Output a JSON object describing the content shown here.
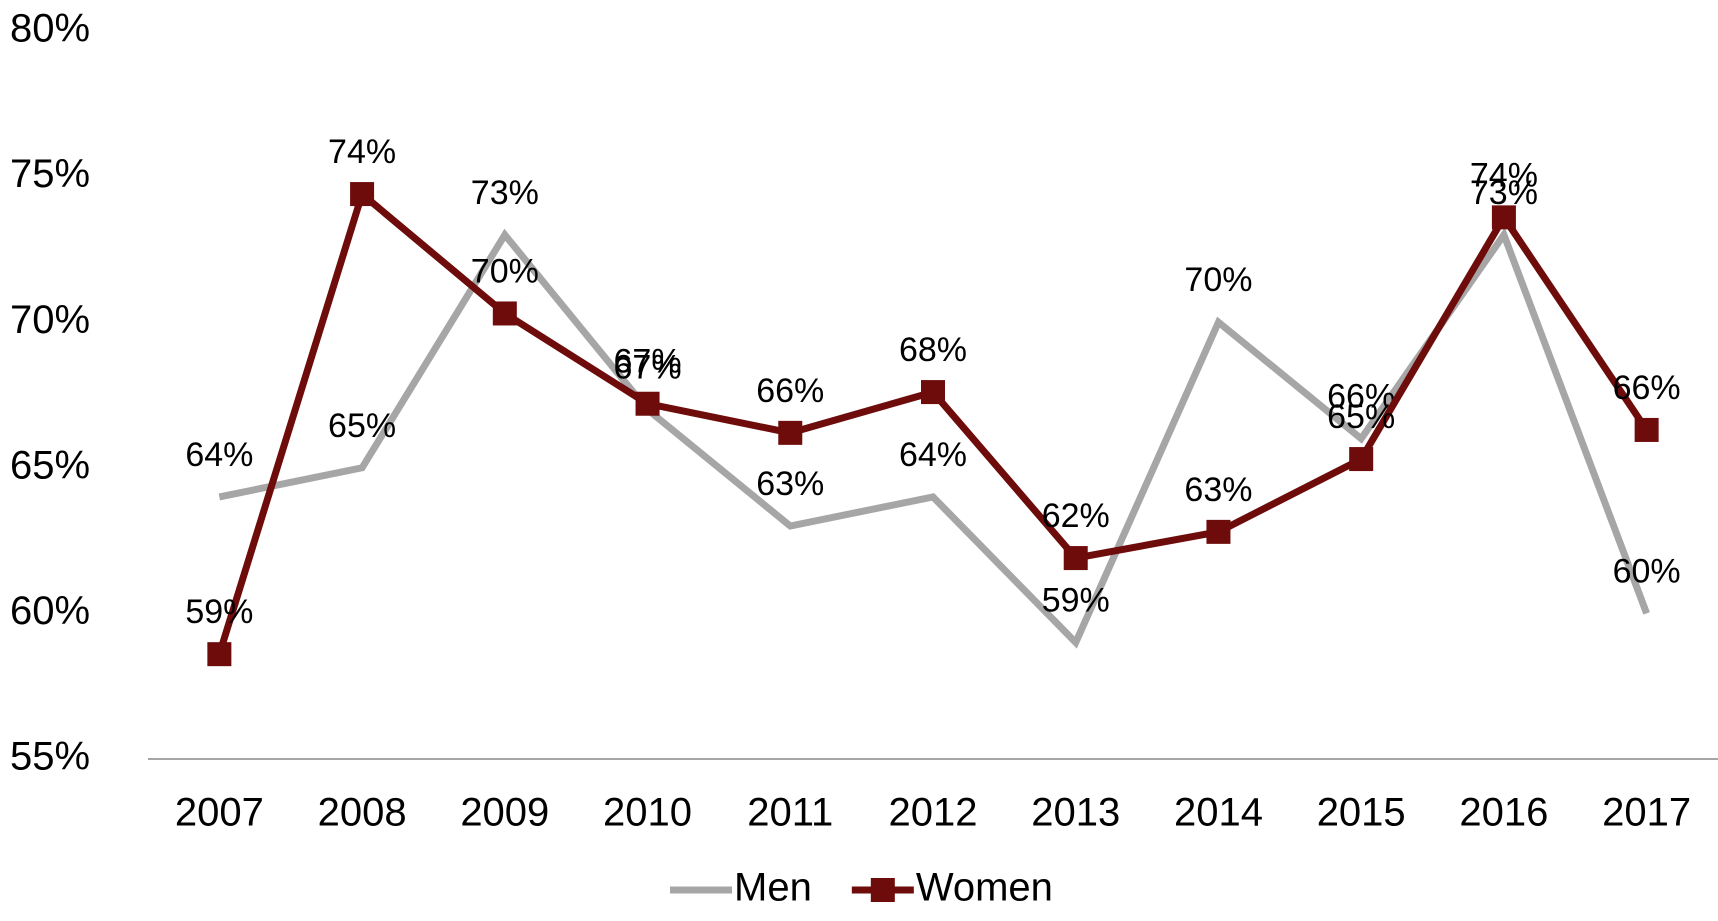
{
  "chart_data": {
    "type": "line",
    "categories": [
      "2007",
      "2008",
      "2009",
      "2010",
      "2011",
      "2012",
      "2013",
      "2014",
      "2015",
      "2016",
      "2017"
    ],
    "series": [
      {
        "name": "Men",
        "color": "#a6a6a6",
        "marker": "none",
        "values": [
          64,
          65,
          73,
          67,
          63,
          64,
          59,
          70,
          66,
          73,
          60
        ],
        "value_labels": [
          "64%",
          "65%",
          "73%",
          "67%",
          "63%",
          "64%",
          "59%",
          "70%",
          "66%",
          "73%",
          "60%"
        ]
      },
      {
        "name": "Women",
        "color": "#6e0b0b",
        "marker": "square",
        "values": [
          58.6,
          74.4,
          70.3,
          67.2,
          66.2,
          67.6,
          61.9,
          62.8,
          65.3,
          73.6,
          66.3
        ],
        "value_labels": [
          "59%",
          "74%",
          "70%",
          "67%",
          "66%",
          "68%",
          "62%",
          "63%",
          "65%",
          "74%",
          "66%"
        ]
      }
    ],
    "ylim": [
      55,
      80
    ],
    "yticks": [
      {
        "value": 55,
        "label": "55%"
      },
      {
        "value": 60,
        "label": "60%"
      },
      {
        "value": 65,
        "label": "65%"
      },
      {
        "value": 70,
        "label": "70%"
      },
      {
        "value": 75,
        "label": "75%"
      },
      {
        "value": 80,
        "label": "80%"
      }
    ],
    "legend": "bottom"
  }
}
